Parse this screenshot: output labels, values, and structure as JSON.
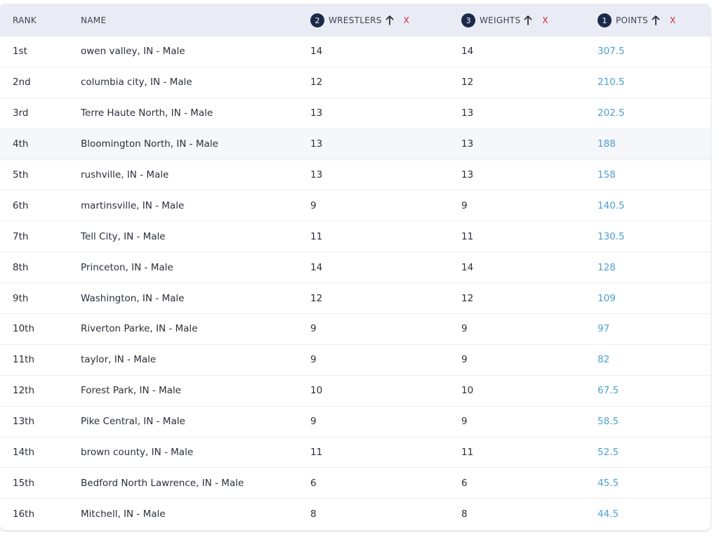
{
  "headers": {
    "rank": "RANK",
    "name": "NAME",
    "wrestlers": "WRESTLERS",
    "weights": "WEIGHTS",
    "points": "POINTS",
    "wrestlers_sort_order": "2",
    "weights_sort_order": "3",
    "points_sort_order": "1",
    "clear_label": "X"
  },
  "colors": {
    "badge": "#1b2a4a",
    "clear": "#d0263f",
    "points_link": "#4fa0d0",
    "header_bg": "#e9ecf4"
  },
  "rows": [
    {
      "rank": "1st",
      "name": "owen valley, IN - Male",
      "wrestlers": "14",
      "weights": "14",
      "points": "307.5"
    },
    {
      "rank": "2nd",
      "name": "columbia city, IN - Male",
      "wrestlers": "12",
      "weights": "12",
      "points": "210.5"
    },
    {
      "rank": "3rd",
      "name": "Terre Haute North, IN - Male",
      "wrestlers": "13",
      "weights": "13",
      "points": "202.5"
    },
    {
      "rank": "4th",
      "name": "Bloomington North, IN - Male",
      "wrestlers": "13",
      "weights": "13",
      "points": "188"
    },
    {
      "rank": "5th",
      "name": "rushville, IN - Male",
      "wrestlers": "13",
      "weights": "13",
      "points": "158"
    },
    {
      "rank": "6th",
      "name": "martinsville, IN - Male",
      "wrestlers": "9",
      "weights": "9",
      "points": "140.5"
    },
    {
      "rank": "7th",
      "name": "Tell City, IN - Male",
      "wrestlers": "11",
      "weights": "11",
      "points": "130.5"
    },
    {
      "rank": "8th",
      "name": "Princeton, IN - Male",
      "wrestlers": "14",
      "weights": "14",
      "points": "128"
    },
    {
      "rank": "9th",
      "name": "Washington, IN - Male",
      "wrestlers": "12",
      "weights": "12",
      "points": "109"
    },
    {
      "rank": "10th",
      "name": "Riverton Parke, IN - Male",
      "wrestlers": "9",
      "weights": "9",
      "points": "97"
    },
    {
      "rank": "11th",
      "name": "taylor, IN - Male",
      "wrestlers": "9",
      "weights": "9",
      "points": "82"
    },
    {
      "rank": "12th",
      "name": "Forest Park, IN - Male",
      "wrestlers": "10",
      "weights": "10",
      "points": "67.5"
    },
    {
      "rank": "13th",
      "name": "Pike Central, IN - Male",
      "wrestlers": "9",
      "weights": "9",
      "points": "58.5"
    },
    {
      "rank": "14th",
      "name": "brown county, IN - Male",
      "wrestlers": "11",
      "weights": "11",
      "points": "52.5"
    },
    {
      "rank": "15th",
      "name": "Bedford North Lawrence, IN - Male",
      "wrestlers": "6",
      "weights": "6",
      "points": "45.5"
    },
    {
      "rank": "16th",
      "name": "Mitchell, IN - Male",
      "wrestlers": "8",
      "weights": "8",
      "points": "44.5"
    }
  ]
}
